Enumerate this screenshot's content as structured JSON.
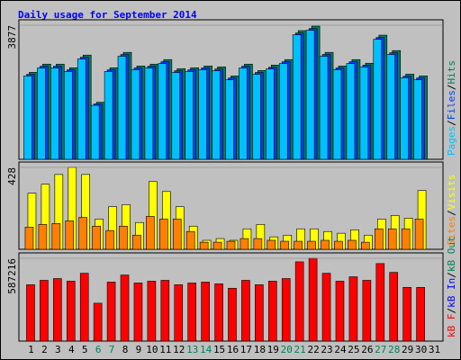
{
  "chart_data": {
    "type": "bar",
    "title": "Daily usage for September 2014",
    "categories": [
      "1",
      "2",
      "3",
      "4",
      "5",
      "6",
      "7",
      "8",
      "9",
      "10",
      "11",
      "12",
      "13",
      "14",
      "15",
      "16",
      "17",
      "18",
      "19",
      "20",
      "21",
      "22",
      "23",
      "24",
      "25",
      "26",
      "27",
      "28",
      "29",
      "30",
      "31"
    ],
    "category_colors": [
      "#000000",
      "#000000",
      "#000000",
      "#000000",
      "#000000",
      "#00805c",
      "#00805c",
      "#000000",
      "#000000",
      "#000000",
      "#000000",
      "#000000",
      "#00805c",
      "#00805c",
      "#000000",
      "#000000",
      "#000000",
      "#000000",
      "#000000",
      "#00805c",
      "#00805c",
      "#000000",
      "#000000",
      "#000000",
      "#000000",
      "#000000",
      "#00805c",
      "#00805c",
      "#000000",
      "#000000",
      "#000000"
    ],
    "legend_separator": "/",
    "panels": [
      {
        "ylim": [
          0,
          3877
        ],
        "yticks": [
          3877
        ],
        "series": [
          {
            "name": "Pages",
            "color": "#00c0ff",
            "values": [
              2410,
              2640,
              2640,
              2540,
              2900,
              1560,
              2540,
              2980,
              2590,
              2640,
              2770,
              2510,
              2540,
              2590,
              2560,
              2300,
              2640,
              2460,
              2610,
              2770,
              3600,
              3730,
              2980,
              2590,
              2770,
              2670,
              3470,
              3030,
              2360,
              2300,
              0
            ]
          },
          {
            "name": "Files",
            "color": "#0040ff",
            "values": [
              2455,
              2690,
              2690,
              2585,
              2950,
              1600,
              2585,
              3030,
              2640,
              2690,
              2820,
              2560,
              2585,
              2640,
              2610,
              2350,
              2690,
              2510,
              2660,
              2820,
              3650,
              3780,
              3030,
              2640,
              2820,
              2720,
              3520,
              3080,
              2400,
              2350,
              0
            ]
          },
          {
            "name": "Hits",
            "color": "#00805c",
            "values": [
              2515,
              2751,
              2751,
              2646,
              3013,
              1650,
              2646,
              3091,
              2698,
              2751,
              2882,
              2620,
              2646,
              2698,
              2672,
              2410,
              2751,
              2567,
              2724,
              2882,
              3720,
              3851,
              3091,
              2698,
              2882,
              2777,
              3589,
              3143,
              2462,
              2410,
              0
            ]
          }
        ]
      },
      {
        "ylim": [
          0,
          428
        ],
        "yticks": [
          428
        ],
        "series": [
          {
            "name": "Sites",
            "color": "#ff8000",
            "values": [
              116,
              130,
              135,
              149,
              167,
              121,
              98,
              121,
              74,
              172,
              158,
              158,
              93,
              37,
              37,
              42,
              56,
              56,
              47,
              42,
              42,
              42,
              47,
              42,
              47,
              37,
              107,
              107,
              107,
              158,
              0
            ]
          },
          {
            "name": "Visits",
            "color": "#ffff00",
            "values": [
              293,
              340,
              391,
              428,
              391,
              158,
              223,
              233,
              140,
              354,
              302,
              223,
              121,
              47,
              56,
              47,
              107,
              130,
              65,
              74,
              107,
              107,
              93,
              84,
              102,
              74,
              158,
              177,
              163,
              307,
              0
            ]
          }
        ]
      },
      {
        "ylim": [
          0,
          587216
        ],
        "yticks": [
          587216
        ],
        "series": [
          {
            "name": "kB F",
            "color": "#ff0000",
            "values": [
              399807,
              431042,
              443536,
              424795,
              481019,
              268620,
              418548,
              468525,
              412300,
              424795,
              431042,
              399807,
              412300,
              418548,
              406053,
              374819,
              431042,
              399807,
              424795,
              443536,
              562228,
              587216,
              481019,
              424795,
              456030,
              431042,
              549734,
              487266,
              381066,
              381066,
              0
            ]
          }
        ],
        "extra_legend": [
          {
            "label": "kB In",
            "color": "#0000ff"
          },
          {
            "label": "kB Out",
            "color": "#00805c"
          }
        ]
      }
    ]
  }
}
